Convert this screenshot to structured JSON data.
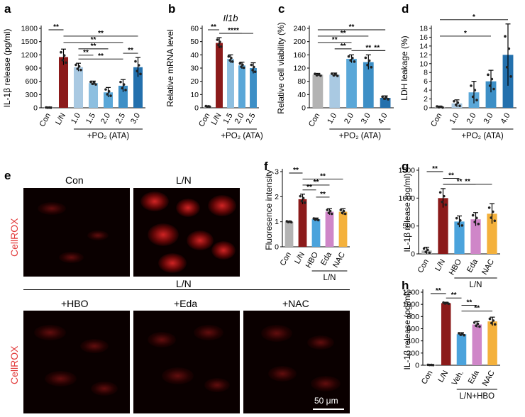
{
  "panel_letters": [
    "a",
    "b",
    "c",
    "d",
    "e",
    "f",
    "g",
    "h"
  ],
  "colors": {
    "con": "#b3b3b3",
    "ln": "#8b1a1a",
    "b1": "#a9c9e2",
    "b2": "#8dbfe0",
    "b3": "#5aa7d8",
    "b4": "#3d8fc6",
    "b5": "#2370ad",
    "blue": "#4ba3dc",
    "purple": "#cf86c8",
    "orange": "#f4b13c",
    "red_label": "#e23b3b"
  },
  "micrograph": {
    "labels": [
      "Con",
      "L/N",
      "+HBO",
      "+Eda",
      "+NAC"
    ],
    "group_label": "L/N",
    "stain": "CellROX",
    "scale_bar": "50 μm"
  },
  "chart_data": [
    {
      "id": "a",
      "type": "bar",
      "ylabel": "IL-1β release (pg/ml)",
      "categories": [
        "Con",
        "L/N",
        "1.0",
        "1.5",
        "2.0",
        "2.5",
        "3.0"
      ],
      "values": [
        5,
        1150,
        920,
        560,
        350,
        500,
        920
      ],
      "errors": [
        3,
        180,
        90,
        45,
        110,
        140,
        220
      ],
      "yticks": [
        0,
        300,
        600,
        900,
        1200,
        1500,
        1800
      ],
      "ylim": [
        0,
        1800
      ],
      "group_label": "+PO₂ (ATA)",
      "sig": "**"
    },
    {
      "id": "b",
      "type": "bar",
      "title": "Il1b",
      "ylabel": "Relative mRNA level",
      "categories": [
        "Con",
        "L/N",
        "1.5",
        "2.0",
        "2.5"
      ],
      "values": [
        1,
        49,
        37,
        32,
        30
      ],
      "errors": [
        0.5,
        4,
        3,
        2.5,
        4
      ],
      "yticks": [
        0,
        10,
        20,
        30,
        40,
        50,
        60
      ],
      "ylim": [
        0,
        60
      ],
      "group_label": "+PO₂ (ATA)",
      "sig": "**"
    },
    {
      "id": "c",
      "type": "bar",
      "ylabel": "Relative cell viability (%)",
      "categories": [
        "Con",
        "1.0",
        "2.0",
        "3.0",
        "4.0"
      ],
      "values": [
        100,
        100,
        148,
        138,
        30
      ],
      "errors": [
        4,
        5,
        12,
        22,
        6
      ],
      "yticks": [
        0,
        40,
        80,
        120,
        160,
        200,
        240
      ],
      "ylim": [
        0,
        240
      ],
      "group_label": "+PO₂ (ATA)",
      "sig": "**"
    },
    {
      "id": "d",
      "type": "bar",
      "ylabel": "LDH leakage (%)",
      "categories": [
        "Con",
        "1.0",
        "2.0",
        "3.0",
        "4.0"
      ],
      "values": [
        0.2,
        1.0,
        3.5,
        6.0,
        12.0
      ],
      "errors": [
        0.2,
        0.8,
        2.5,
        2.5,
        7.0
      ],
      "yticks": [
        0,
        2,
        4,
        6,
        8,
        10,
        12,
        14,
        16,
        18
      ],
      "ylim": [
        0,
        18
      ],
      "group_label": "+PO₂ (ATA)",
      "sig": "*"
    },
    {
      "id": "f",
      "type": "bar",
      "ylabel": "Fluoresence intensity",
      "categories": [
        "Con",
        "L/N",
        "HBO",
        "Eda",
        "NAC"
      ],
      "values": [
        1.0,
        1.9,
        1.1,
        1.4,
        1.4
      ],
      "errors": [
        0.03,
        0.2,
        0.05,
        0.12,
        0.12
      ],
      "yticks": [
        0,
        1,
        2,
        3
      ],
      "ylim": [
        0,
        3
      ],
      "group_label": "L/N",
      "sig": "**"
    },
    {
      "id": "g",
      "type": "bar",
      "ylabel": "IL-1β release (pg/ml)",
      "categories": [
        "Con",
        "L/N",
        "HBO",
        "Eda",
        "NAC"
      ],
      "values": [
        60,
        1000,
        580,
        620,
        720
      ],
      "errors": [
        60,
        170,
        100,
        120,
        180
      ],
      "yticks": [
        0,
        500,
        1000,
        1500
      ],
      "ylim": [
        0,
        1500
      ],
      "group_label": "L/N",
      "sig": "**"
    },
    {
      "id": "h",
      "type": "bar",
      "ylabel": "IL-1β release (pg/ml)",
      "categories": [
        "Con",
        "L/N",
        "Veh.",
        "Eda",
        "NAC"
      ],
      "values": [
        5,
        1020,
        510,
        670,
        720
      ],
      "errors": [
        3,
        15,
        25,
        50,
        70
      ],
      "yticks": [
        0,
        200,
        400,
        600,
        800,
        1000,
        1200
      ],
      "ylim": [
        0,
        1200
      ],
      "group_label": "L/N+HBO",
      "sig": "**"
    }
  ]
}
